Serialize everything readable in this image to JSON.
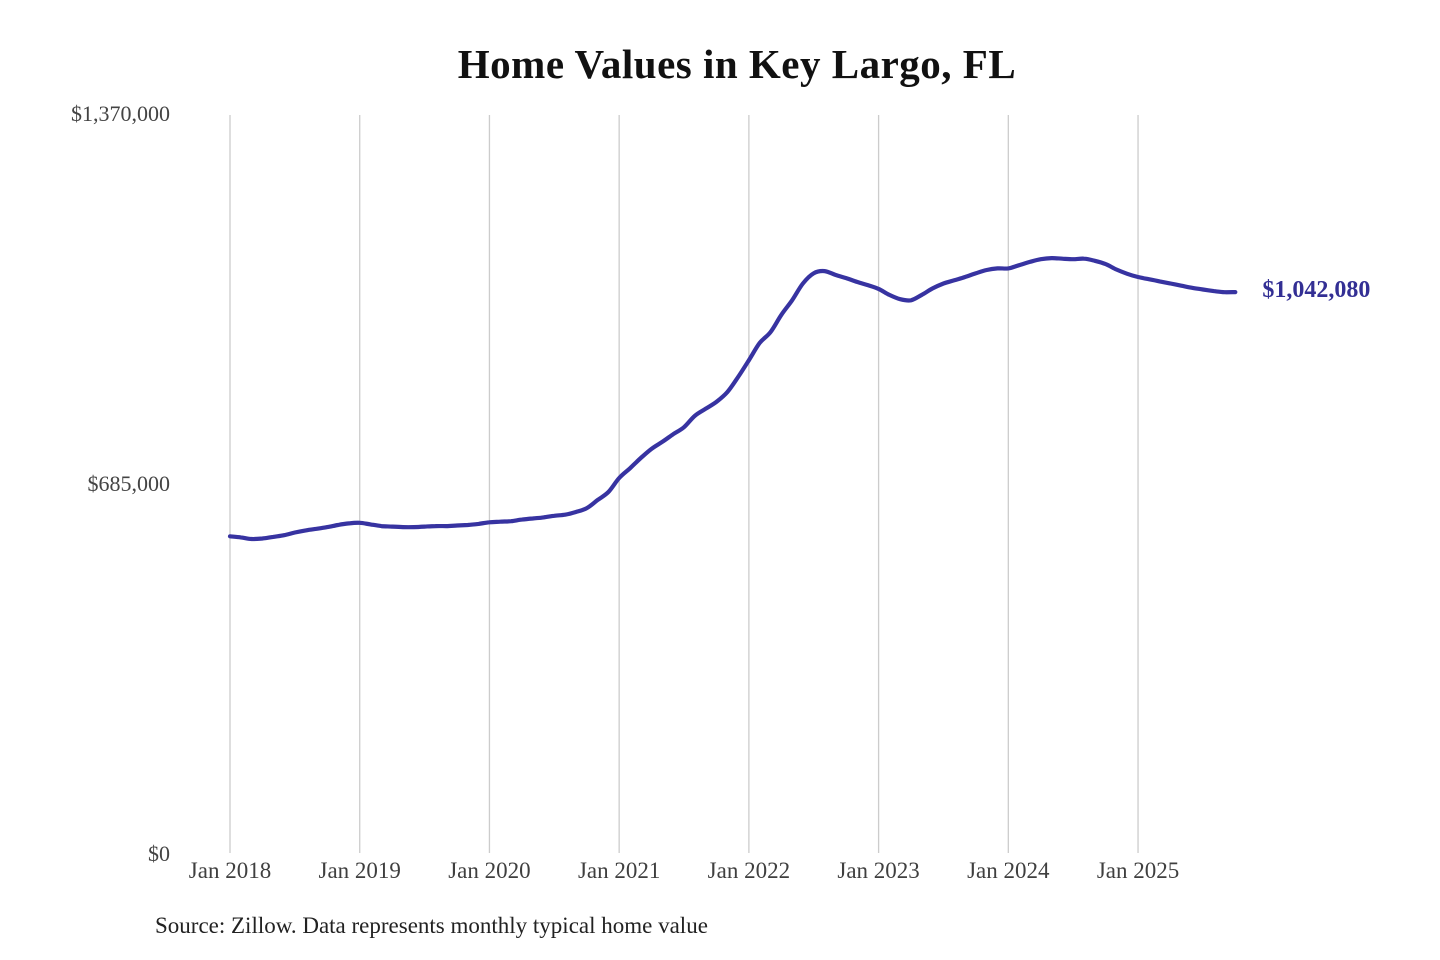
{
  "chart": {
    "title": "Home Values in Key Largo, FL",
    "end_value_label": "$1,042,080",
    "source_note": "Source: Zillow. Data represents monthly typical home value",
    "colors": {
      "line": "#3733a1",
      "end_label": "#332f94",
      "grid": "#cccccc",
      "title": "#111111",
      "axis_text": "#444444",
      "source_text": "#222222"
    }
  },
  "chart_data": {
    "type": "line",
    "title": "Home Values in Key Largo, FL",
    "x_unit": "month",
    "x_start": "2018-01",
    "x_end": "2025-10",
    "ylim": [
      0,
      1370000
    ],
    "grid": "vertical-only",
    "legend": "none",
    "x_tick_labels": [
      "Jan 2018",
      "Jan 2019",
      "Jan 2020",
      "Jan 2021",
      "Jan 2022",
      "Jan 2023",
      "Jan 2024",
      "Jan 2025"
    ],
    "x_tick_month_indices": [
      0,
      12,
      24,
      36,
      48,
      60,
      72,
      84
    ],
    "y_ticks": [
      {
        "label": "$0",
        "value": 0
      },
      {
        "label": "$685,000",
        "value": 685000
      },
      {
        "label": "$1,370,000",
        "value": 1370000
      }
    ],
    "end_label": {
      "text": "$1,042,080",
      "value": 1042080
    },
    "series": [
      {
        "name": "Typical home value",
        "values": [
          590000,
          588000,
          585000,
          586000,
          589000,
          592000,
          597000,
          601000,
          604000,
          607000,
          611000,
          614000,
          615000,
          612000,
          609000,
          608000,
          607000,
          607000,
          608000,
          609000,
          609000,
          610000,
          611000,
          613000,
          616000,
          617000,
          618000,
          621000,
          623000,
          625000,
          628000,
          630000,
          635000,
          642000,
          657000,
          672000,
          698000,
          716000,
          735000,
          752000,
          765000,
          779000,
          792000,
          813000,
          826000,
          839000,
          857000,
          885000,
          916000,
          948000,
          968000,
          1000000,
          1027000,
          1058000,
          1077000,
          1081000,
          1074000,
          1068000,
          1061000,
          1055000,
          1048000,
          1037000,
          1029000,
          1027000,
          1037000,
          1049000,
          1058000,
          1064000,
          1070000,
          1077000,
          1083000,
          1086000,
          1086000,
          1092000,
          1098000,
          1103000,
          1105000,
          1104000,
          1103000,
          1104000,
          1100000,
          1094000,
          1084000,
          1076000,
          1070000,
          1066000,
          1062000,
          1058000,
          1054000,
          1050000,
          1047000,
          1044000,
          1042000,
          1042080
        ]
      }
    ]
  }
}
